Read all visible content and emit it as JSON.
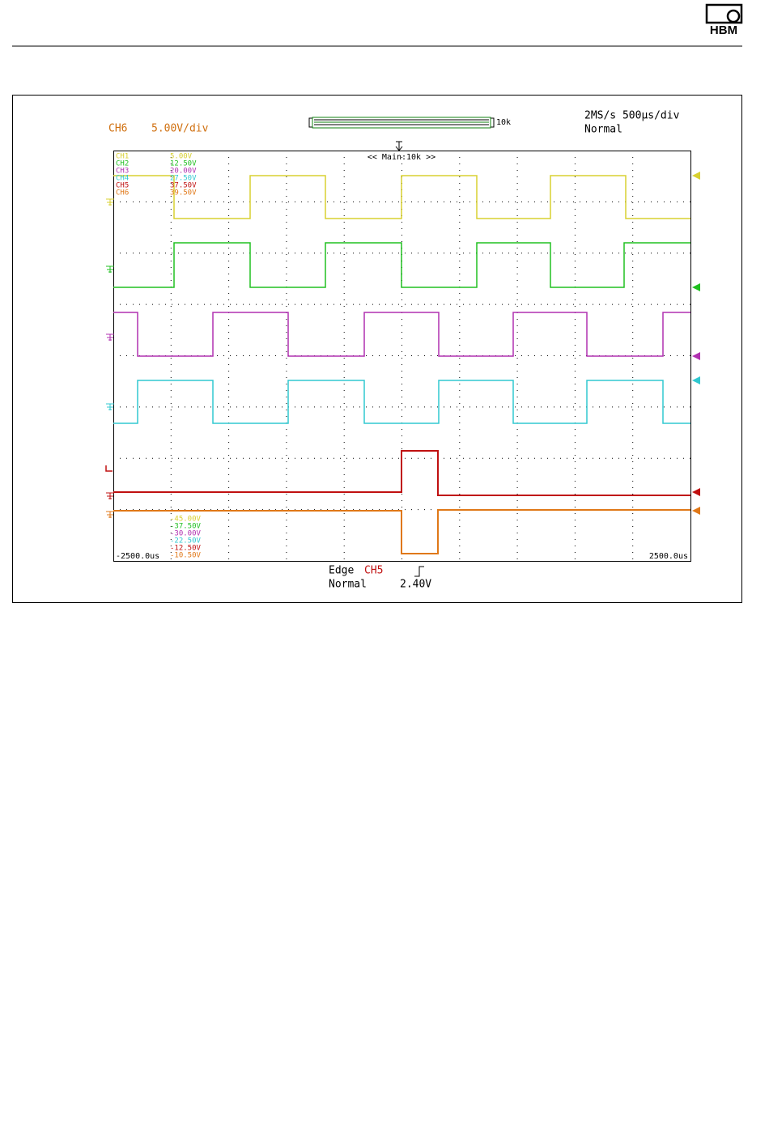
{
  "header": {
    "logo": "HBM"
  },
  "screen": {
    "channel": "CH6",
    "scale": "5.00V/div",
    "record_length": "10k",
    "sample_rate": "2MS/s 500µs/div",
    "acq_mode": "Normal",
    "zoom": "<< Main:10k >>",
    "channels": [
      {
        "name": "CH1",
        "upper": "5.00V",
        "lower": "-45.00V"
      },
      {
        "name": "CH2",
        "upper": "12.50V",
        "lower": "-37.50V"
      },
      {
        "name": "CH3",
        "upper": "20.00V",
        "lower": "-30.00V"
      },
      {
        "name": "CH4",
        "upper": "27.50V",
        "lower": "-22.50V"
      },
      {
        "name": "CH5",
        "upper": "37.50V",
        "lower": "-12.50V"
      },
      {
        "name": "CH6",
        "upper": "39.50V",
        "lower": "-10.50V"
      }
    ],
    "time_left": "-2500.0us",
    "time_right": "2500.0us",
    "trigger": {
      "type": "Edge",
      "source": "CH5",
      "mode": "Normal",
      "level": "2.40V"
    }
  }
}
